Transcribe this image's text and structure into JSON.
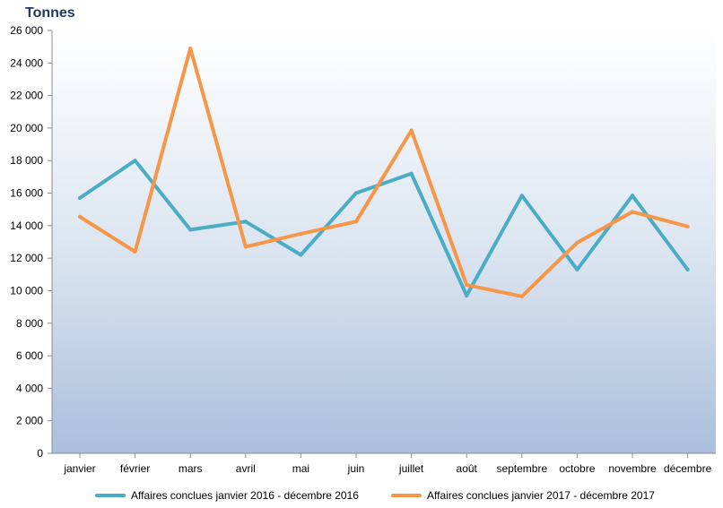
{
  "chart_data": {
    "type": "line",
    "ylabel": "Tonnes",
    "xlabel": "",
    "categories": [
      "janvier",
      "février",
      "mars",
      "avril",
      "mai",
      "juin",
      "juillet",
      "août",
      "septembre",
      "octobre",
      "novembre",
      "décembre"
    ],
    "yticks": [
      "0",
      "2 000",
      "4 000",
      "6 000",
      "8 000",
      "10 000",
      "12 000",
      "14 000",
      "16 000",
      "18 000",
      "20 000",
      "22 000",
      "24 000",
      "26 000"
    ],
    "ylim": [
      0,
      26000
    ],
    "grid": false,
    "legend_position": "bottom",
    "series": [
      {
        "name": "Affaires conclues janvier 2016  - décembre 2016",
        "color": "#4bacc6",
        "values": [
          15700,
          18000,
          13750,
          14250,
          12200,
          16000,
          17200,
          9700,
          15850,
          11300,
          15850,
          11300
        ]
      },
      {
        "name": "Affaires conclues janvier 2017 - décembre 2017",
        "color": "#f79646",
        "values": [
          14550,
          12400,
          24900,
          12700,
          13500,
          14250,
          19850,
          10350,
          9650,
          12950,
          14850,
          13950
        ]
      }
    ]
  }
}
